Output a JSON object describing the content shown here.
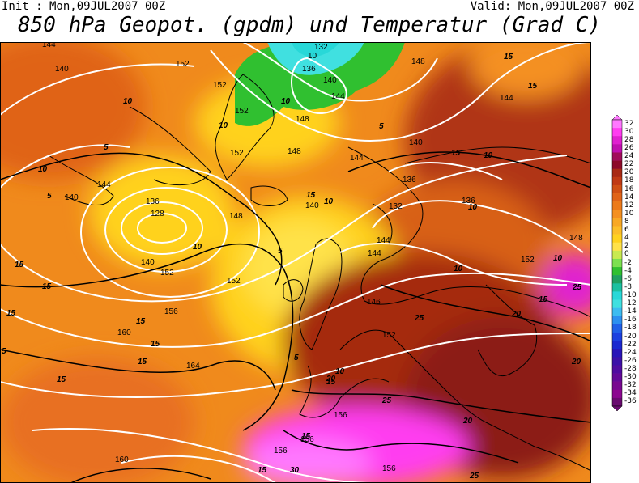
{
  "header": {
    "init": "Init : Mon,09JUL2007 00Z",
    "valid": "Valid: Mon,09JUL2007 00Z",
    "title": "850 hPa Geopot. (gpdm) und Temperatur (Grad C)"
  },
  "colors": {
    "orange": "#f08a1c",
    "dark_orange": "#d96414",
    "yellow": "#ffd21e",
    "light_yellow": "#ffe24a",
    "red_brown": "#a52a10",
    "magenta": "#ff3cf0",
    "green": "#30c030",
    "cyan": "#40e0e0",
    "contour": "#ffffff",
    "coast": "#000000"
  },
  "geopotential_labels": [
    "144",
    "152",
    "132",
    "148",
    "140",
    "10",
    "136",
    "5",
    "152",
    "140",
    "148",
    "144",
    "148",
    "140",
    "144",
    "136",
    "148",
    "140",
    "152",
    "136",
    "144",
    "136",
    "132",
    "128",
    "148",
    "136",
    "132",
    "140",
    "140",
    "144",
    "144",
    "152",
    "140",
    "152",
    "146",
    "156",
    "152",
    "160",
    "156",
    "164",
    "156",
    "156",
    "156",
    "160",
    "156",
    "148"
  ],
  "temperature_labels": [
    "15",
    "15",
    "15",
    "10",
    "5",
    "5",
    "10",
    "10",
    "5",
    "10",
    "5",
    "10",
    "10",
    "15",
    "15",
    "15",
    "15",
    "10",
    "15",
    "10",
    "10",
    "15",
    "15",
    "15",
    "5",
    "10",
    "15",
    "15",
    "15",
    "5",
    "20",
    "20",
    "25",
    "20",
    "20",
    "25",
    "25",
    "30",
    "25",
    "10",
    "15"
  ],
  "legend": {
    "levels": [
      "32",
      "30",
      "28",
      "26",
      "24",
      "22",
      "20",
      "18",
      "16",
      "14",
      "12",
      "10",
      "8",
      "6",
      "4",
      "2",
      "0",
      "-2",
      "-4",
      "-6",
      "-8",
      "-10",
      "-12",
      "-14",
      "-16",
      "-18",
      "-20",
      "-22",
      "-24",
      "-26",
      "-28",
      "-30",
      "-32",
      "-34",
      "-36"
    ],
    "colors": [
      "#ff78ff",
      "#ff3cf0",
      "#e020d0",
      "#c010b0",
      "#a00c5a",
      "#8c0a28",
      "#a82a14",
      "#c03a14",
      "#d05014",
      "#e06418",
      "#ec7a1a",
      "#f49020",
      "#f8a824",
      "#fcbe28",
      "#ffd21e",
      "#ffe24a",
      "#c8ea50",
      "#7ce050",
      "#30c030",
      "#20a060",
      "#1cc0a0",
      "#28d8d8",
      "#40e0e0",
      "#3cbcf0",
      "#2c90f0",
      "#2060e8",
      "#1c40e0",
      "#1a28d0",
      "#2814b8",
      "#3c10a8",
      "#500ca0",
      "#640a98",
      "#780890",
      "#8c0690",
      "#6a0a70"
    ]
  }
}
